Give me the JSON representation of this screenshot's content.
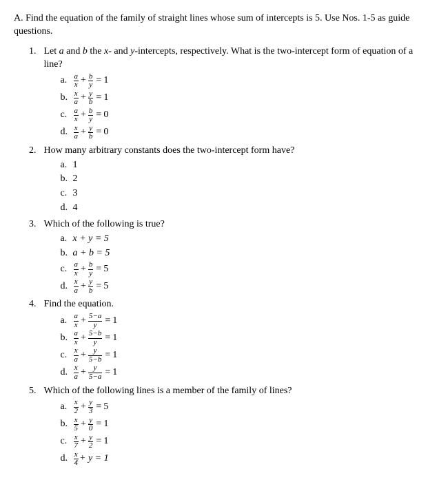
{
  "section": {
    "label": "A.",
    "text": "Find the equation of the family of straight lines whose sum of intercepts is 5. Use Nos. 1-5 as guide questions."
  },
  "questions": [
    {
      "num": "1.",
      "prompt_pre": "Let ",
      "var_a": "a",
      "mid1": " and ",
      "var_b": "b",
      "mid2": " the ",
      "var_x": "x",
      "mid3": "- and ",
      "var_y": "y",
      "mid4": "-intercepts, respectively. What is the two-intercept form of equation of a line?",
      "opts": [
        {
          "letter": "a.",
          "n1": "a",
          "d1": "x",
          "n2": "b",
          "d2": "y",
          "rhs": "1"
        },
        {
          "letter": "b.",
          "n1": "x",
          "d1": "a",
          "n2": "y",
          "d2": "b",
          "rhs": "1"
        },
        {
          "letter": "c.",
          "n1": "a",
          "d1": "x",
          "n2": "b",
          "d2": "y",
          "rhs": "0"
        },
        {
          "letter": "d.",
          "n1": "x",
          "d1": "a",
          "n2": "y",
          "d2": "b",
          "rhs": "0"
        }
      ]
    },
    {
      "num": "2.",
      "prompt": "How many arbitrary constants does the two-intercept form have?",
      "opts": [
        {
          "letter": "a.",
          "text": "1"
        },
        {
          "letter": "b.",
          "text": "2"
        },
        {
          "letter": "c.",
          "text": "3"
        },
        {
          "letter": "d.",
          "text": "4"
        }
      ]
    },
    {
      "num": "3.",
      "prompt": "Which of the following is true?",
      "opts": [
        {
          "letter": "a.",
          "plain_pre": "x + y = 5"
        },
        {
          "letter": "b.",
          "plain_pre": "a + b = 5"
        },
        {
          "letter": "c.",
          "n1": "a",
          "d1": "x",
          "n2": "b",
          "d2": "y",
          "rhs": "5"
        },
        {
          "letter": "d.",
          "n1": "x",
          "d1": "a",
          "n2": "y",
          "d2": "b",
          "rhs": "5"
        }
      ]
    },
    {
      "num": "4.",
      "prompt": "Find the equation.",
      "opts": [
        {
          "letter": "a.",
          "n1": "a",
          "d1": "x",
          "n2": "5−a",
          "d2": "y",
          "rhs": "1"
        },
        {
          "letter": "b.",
          "n1": "a",
          "d1": "x",
          "n2": "5−b",
          "d2": "y",
          "rhs": "1"
        },
        {
          "letter": "c.",
          "n1": "x",
          "d1": "a",
          "n2": "y",
          "d2": "5−b",
          "rhs": "1"
        },
        {
          "letter": "d.",
          "n1": "x",
          "d1": "a",
          "n2": "y",
          "d2": "5−a",
          "rhs": "1"
        }
      ]
    },
    {
      "num": "5.",
      "prompt": "Which of the following lines is a member of the family of lines?",
      "opts": [
        {
          "letter": "a.",
          "n1": "x",
          "d1": "2",
          "n2": "y",
          "d2": "3",
          "rhs": "5"
        },
        {
          "letter": "b.",
          "n1": "x",
          "d1": "5",
          "n2": "y",
          "d2": "0",
          "rhs": "1"
        },
        {
          "letter": "c.",
          "n1": "x",
          "d1": "7",
          "n2": "y",
          "d2": "2",
          "rhs": "1"
        },
        {
          "letter": "d.",
          "n1": "x",
          "d1": "4",
          "tail": " + y = 1"
        }
      ]
    }
  ]
}
